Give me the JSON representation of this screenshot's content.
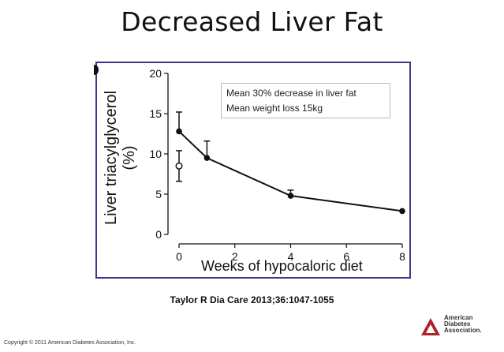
{
  "slide": {
    "title": "Decreased Liver Fat",
    "citation": "Taylor R Dia Care 2013;36:1047-1055",
    "copyright": "Copyright © 2011 American Diabetes Association, Inc.",
    "logo_text": [
      "American",
      "Diabetes",
      "Association."
    ],
    "frame_color": "#3a3a8c",
    "logo_color": "#b0232a"
  },
  "chart_data": {
    "type": "line",
    "title": "",
    "xlabel": "Weeks of hypocaloric diet",
    "ylabel": "Liver triacylglycerol",
    "ylabel_unit": "(%)",
    "xlim": [
      0,
      8
    ],
    "ylim": [
      0,
      20
    ],
    "xticks": [
      0,
      2,
      4,
      6,
      8
    ],
    "yticks": [
      0,
      5,
      10,
      15,
      20
    ],
    "grid": false,
    "annotations": [
      "Mean 30% decrease in liver fat",
      "Mean weight loss 15kg"
    ],
    "series": [
      {
        "style": "filled-circle-line",
        "x": [
          0,
          1,
          4,
          8
        ],
        "y": [
          12.8,
          9.5,
          4.8,
          2.9
        ],
        "error_upper": [
          2.4,
          2.1,
          0.7,
          0
        ]
      },
      {
        "style": "open-circle",
        "x": [
          0
        ],
        "y": [
          8.5
        ],
        "error_upper": [
          1.9
        ],
        "error_lower": [
          1.9
        ]
      }
    ]
  }
}
